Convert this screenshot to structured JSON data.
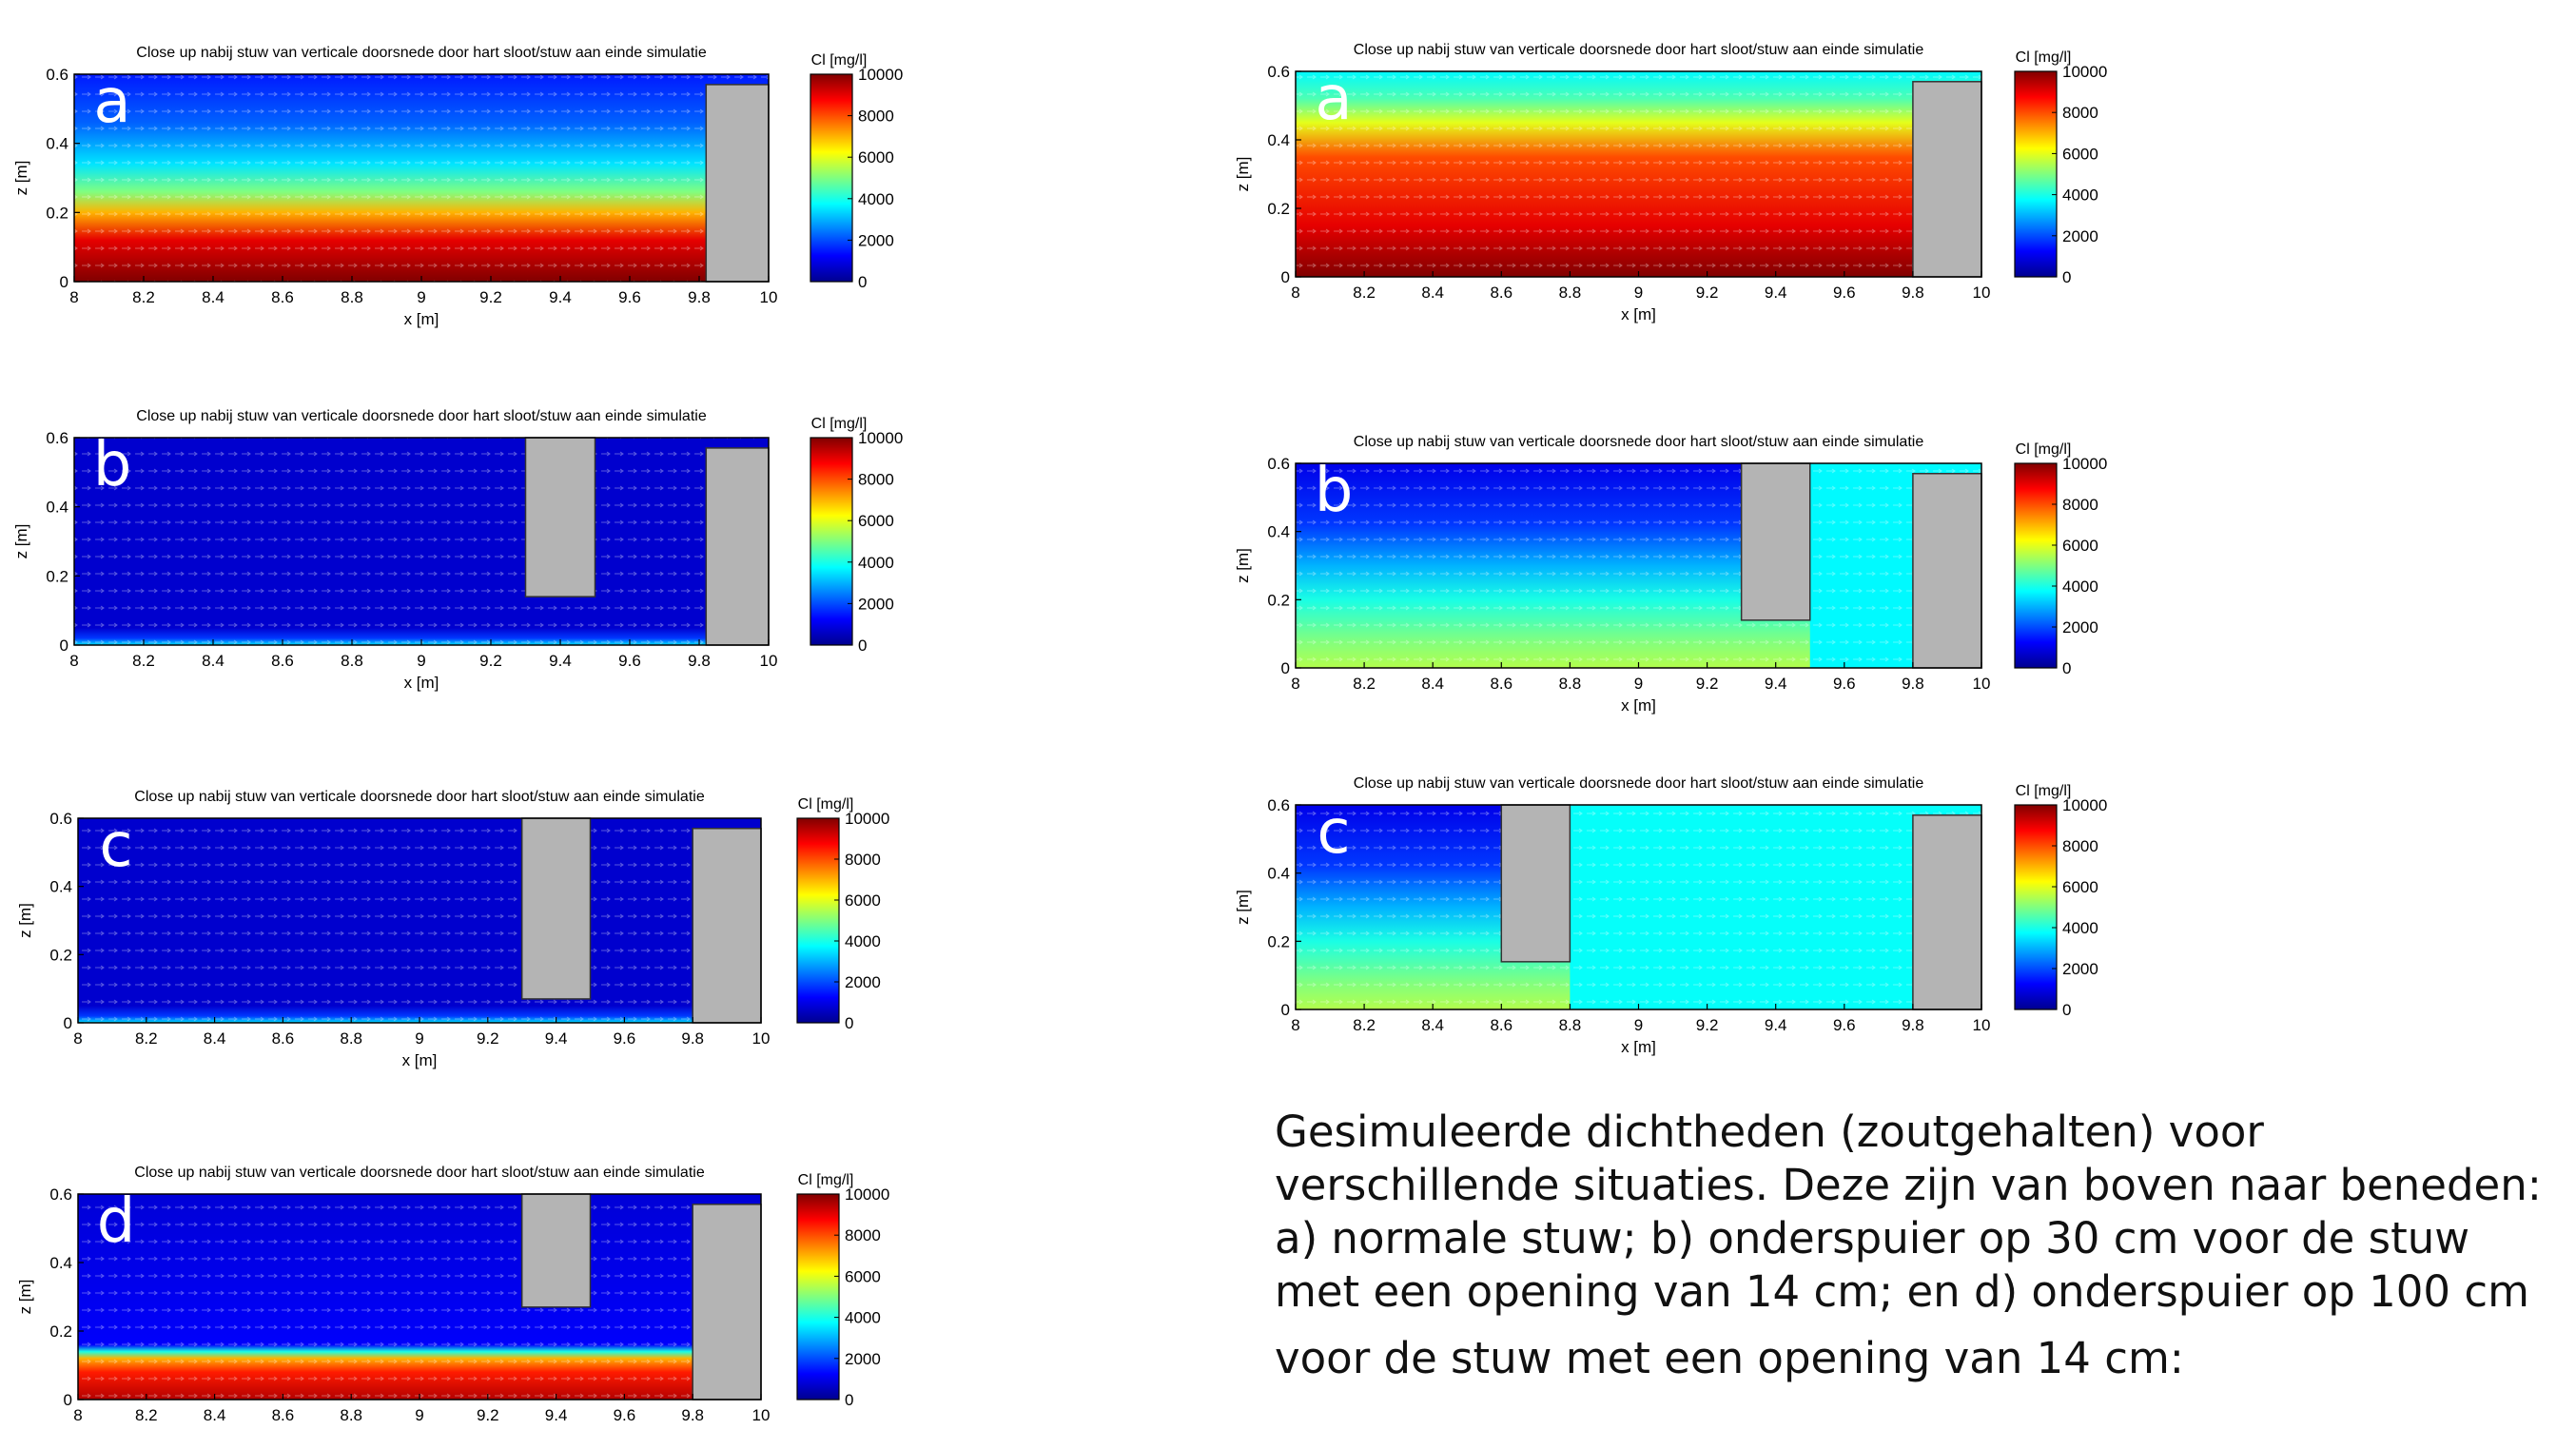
{
  "chart_data": [
    {
      "type": "heatmap",
      "panel_letter": "a",
      "title": "Close up nabij stuw van verticale doorsnede door hart sloot/stuw aan einde simulatie",
      "xlabel": "x [m]",
      "ylabel": "z [m]",
      "colorbar_label": "Cl [mg/l]",
      "xlim": [
        8,
        10
      ],
      "ylim": [
        0,
        0.6
      ],
      "xticks": [
        "8",
        "8.2",
        "8.4",
        "8.6",
        "8.8",
        "9",
        "9.2",
        "9.4",
        "9.6",
        "9.8",
        "10"
      ],
      "yticks": [
        "0",
        "0.2",
        "0.4",
        "0.6"
      ],
      "cticks": [
        "0",
        "2000",
        "4000",
        "6000",
        "8000",
        "10000"
      ],
      "clim": [
        0,
        10000
      ],
      "weir": {
        "x": [
          9.82,
          10.0
        ],
        "z": [
          0,
          0.57
        ]
      },
      "underflow_gate": null,
      "profile": [
        [
          0,
          10000
        ],
        [
          0.12,
          9000
        ],
        [
          0.2,
          7000
        ],
        [
          0.26,
          5000
        ],
        [
          0.34,
          3500
        ],
        [
          0.46,
          2200
        ],
        [
          0.6,
          1500
        ]
      ]
    },
    {
      "type": "heatmap",
      "panel_letter": "b",
      "title": "Close up nabij stuw van verticale doorsnede door hart sloot/stuw aan einde simulatie",
      "xlabel": "x [m]",
      "ylabel": "z [m]",
      "colorbar_label": "Cl [mg/l]",
      "xlim": [
        8,
        10
      ],
      "ylim": [
        0,
        0.6
      ],
      "xticks": [
        "8",
        "8.2",
        "8.4",
        "8.6",
        "8.8",
        "9",
        "9.2",
        "9.4",
        "9.6",
        "9.8",
        "10"
      ],
      "yticks": [
        "0",
        "0.2",
        "0.4",
        "0.6"
      ],
      "cticks": [
        "0",
        "2000",
        "4000",
        "6000",
        "8000",
        "10000"
      ],
      "clim": [
        0,
        10000
      ],
      "weir": {
        "x": [
          9.82,
          10.0
        ],
        "z": [
          0,
          0.57
        ]
      },
      "underflow_gate": {
        "x": [
          9.3,
          9.5
        ],
        "z": [
          0.14,
          0.6
        ]
      },
      "profile": [
        [
          0,
          3500
        ],
        [
          0.02,
          1800
        ],
        [
          0.05,
          700
        ],
        [
          0.6,
          700
        ]
      ]
    },
    {
      "type": "heatmap",
      "panel_letter": "c",
      "title": "Close up nabij stuw van verticale doorsnede door hart sloot/stuw aan einde simulatie",
      "xlabel": "x [m]",
      "ylabel": "z [m]",
      "colorbar_label": "Cl [mg/l]",
      "xlim": [
        8,
        10
      ],
      "ylim": [
        0,
        0.6
      ],
      "xticks": [
        "8",
        "8.2",
        "8.4",
        "8.6",
        "8.8",
        "9",
        "9.2",
        "9.4",
        "9.6",
        "9.8",
        "10"
      ],
      "yticks": [
        "0",
        "0.2",
        "0.4",
        "0.6"
      ],
      "cticks": [
        "0",
        "2000",
        "4000",
        "6000",
        "8000",
        "10000"
      ],
      "clim": [
        0,
        10000
      ],
      "weir": {
        "x": [
          9.8,
          10.0
        ],
        "z": [
          0,
          0.57
        ]
      },
      "underflow_gate": {
        "x": [
          9.3,
          9.5
        ],
        "z": [
          0.07,
          0.6
        ]
      },
      "profile": [
        [
          0,
          3500
        ],
        [
          0.02,
          1800
        ],
        [
          0.05,
          700
        ],
        [
          0.6,
          700
        ]
      ]
    },
    {
      "type": "heatmap",
      "panel_letter": "d",
      "title": "Close up nabij stuw van verticale doorsnede door hart sloot/stuw aan einde simulatie",
      "xlabel": "x [m]",
      "ylabel": "z [m]",
      "colorbar_label": "Cl [mg/l]",
      "xlim": [
        8,
        10
      ],
      "ylim": [
        0,
        0.6
      ],
      "xticks": [
        "8",
        "8.2",
        "8.4",
        "8.6",
        "8.8",
        "9",
        "9.2",
        "9.4",
        "9.6",
        "9.8",
        "10"
      ],
      "yticks": [
        "0",
        "0.2",
        "0.4",
        "0.6"
      ],
      "cticks": [
        "0",
        "2000",
        "4000",
        "6000",
        "8000",
        "10000"
      ],
      "clim": [
        0,
        10000
      ],
      "weir": {
        "x": [
          9.8,
          10.0
        ],
        "z": [
          0,
          0.57
        ]
      },
      "underflow_gate": {
        "x": [
          9.3,
          9.5
        ],
        "z": [
          0.27,
          0.6
        ]
      },
      "profile": [
        [
          0,
          9500
        ],
        [
          0.08,
          8500
        ],
        [
          0.12,
          7000
        ],
        [
          0.14,
          4000
        ],
        [
          0.16,
          1200
        ],
        [
          0.6,
          800
        ]
      ]
    },
    {
      "type": "heatmap",
      "panel_letter": "a",
      "title": "Close up nabij stuw van verticale doorsnede door hart sloot/stuw aan einde simulatie",
      "xlabel": "x [m]",
      "ylabel": "z [m]",
      "colorbar_label": "Cl [mg/l]",
      "xlim": [
        8,
        10
      ],
      "ylim": [
        0,
        0.6
      ],
      "xticks": [
        "8",
        "8.2",
        "8.4",
        "8.6",
        "8.8",
        "9",
        "9.2",
        "9.4",
        "9.6",
        "9.8",
        "10"
      ],
      "yticks": [
        "0",
        "0.2",
        "0.4",
        "0.6"
      ],
      "cticks": [
        "0",
        "2000",
        "4000",
        "6000",
        "8000",
        "10000"
      ],
      "clim": [
        0,
        10000
      ],
      "weir": {
        "x": [
          9.8,
          10.0
        ],
        "z": [
          0,
          0.57
        ]
      },
      "underflow_gate": null,
      "profile": [
        [
          0,
          10000
        ],
        [
          0.15,
          9000
        ],
        [
          0.35,
          8000
        ],
        [
          0.45,
          6000
        ],
        [
          0.52,
          4500
        ],
        [
          0.6,
          3700
        ]
      ]
    },
    {
      "type": "heatmap",
      "panel_letter": "b",
      "title": "Close up nabij stuw van verticale doorsnede door hart sloot/stuw aan einde simulatie",
      "xlabel": "x [m]",
      "ylabel": "z [m]",
      "colorbar_label": "Cl [mg/l]",
      "xlim": [
        8,
        10
      ],
      "ylim": [
        0,
        0.6
      ],
      "xticks": [
        "8",
        "8.2",
        "8.4",
        "8.6",
        "8.8",
        "9",
        "9.2",
        "9.4",
        "9.6",
        "9.8",
        "10"
      ],
      "yticks": [
        "0",
        "0.2",
        "0.4",
        "0.6"
      ],
      "cticks": [
        "0",
        "2000",
        "4000",
        "6000",
        "8000",
        "10000"
      ],
      "clim": [
        0,
        10000
      ],
      "weir": {
        "x": [
          9.8,
          10.0
        ],
        "z": [
          0,
          0.57
        ]
      },
      "underflow_gate": {
        "x": [
          9.3,
          9.5
        ],
        "z": [
          0.14,
          0.6
        ]
      },
      "profile": [
        [
          0,
          5500
        ],
        [
          0.08,
          5000
        ],
        [
          0.2,
          4000
        ],
        [
          0.3,
          3000
        ],
        [
          0.42,
          1800
        ],
        [
          0.6,
          1000
        ]
      ],
      "downstream_value": 3700
    },
    {
      "type": "heatmap",
      "panel_letter": "c",
      "title": "Close up nabij stuw van verticale doorsnede door hart sloot/stuw aan einde simulatie",
      "xlabel": "x [m]",
      "ylabel": "z [m]",
      "colorbar_label": "Cl [mg/l]",
      "xlim": [
        8,
        10
      ],
      "ylim": [
        0,
        0.6
      ],
      "xticks": [
        "8",
        "8.2",
        "8.4",
        "8.6",
        "8.8",
        "9",
        "9.2",
        "9.4",
        "9.6",
        "9.8",
        "10"
      ],
      "yticks": [
        "0",
        "0.2",
        "0.4",
        "0.6"
      ],
      "cticks": [
        "0",
        "2000",
        "4000",
        "6000",
        "8000",
        "10000"
      ],
      "clim": [
        0,
        10000
      ],
      "weir": {
        "x": [
          9.8,
          10.0
        ],
        "z": [
          0,
          0.57
        ]
      },
      "underflow_gate": {
        "x": [
          8.6,
          8.8
        ],
        "z": [
          0.14,
          0.6
        ]
      },
      "profile": [
        [
          0,
          5500
        ],
        [
          0.08,
          5000
        ],
        [
          0.2,
          4000
        ],
        [
          0.3,
          3000
        ],
        [
          0.42,
          1800
        ],
        [
          0.6,
          1000
        ]
      ],
      "downstream_value": 3800
    }
  ],
  "caption": {
    "line1": "Gesimuleerde dichtheden (zoutgehalten) voor",
    "line2": "verschillende situaties. Deze zijn van boven naar beneden:",
    "line3": "a) normale stuw; b) onderspuier op 30 cm voor de stuw",
    "line4": "met een opening van 14 cm; en d) onderspuier op 100 cm",
    "line5": "voor de stuw met een opening van 14 cm:"
  },
  "colors": {
    "weir_fill": "#b4b4b4",
    "axis": "#000000",
    "text": "#000000"
  }
}
